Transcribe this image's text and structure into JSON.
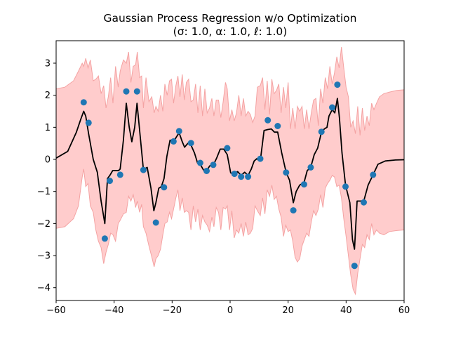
{
  "chart_data": {
    "type": "scatter",
    "title_line1": "Gaussian Process Regression w/o Optimization",
    "title_line2": "(σ: 1.0, α: 1.0, ℓ: 1.0)",
    "xlabel": "",
    "ylabel": "",
    "xlim": [
      -60,
      60
    ],
    "ylim": [
      -4.4,
      3.7
    ],
    "xticks": [
      -60,
      -40,
      -20,
      0,
      20,
      40,
      60
    ],
    "xtick_labels": [
      "−60",
      "−40",
      "−20",
      "0",
      "20",
      "40",
      "60"
    ],
    "yticks": [
      -4,
      -3,
      -2,
      -1,
      0,
      1,
      2,
      3
    ],
    "ytick_labels": [
      "−4",
      "−3",
      "−2",
      "−1",
      "0",
      "1",
      "2",
      "3"
    ],
    "grid": false,
    "colors": {
      "points": "#1f77b4",
      "mean": "#000000",
      "band": "#ffcccc",
      "band_edge": "#f4a3a3"
    },
    "observations": {
      "x": [
        -50.5,
        -48.8,
        -43.2,
        -41.5,
        -37.9,
        -35.8,
        -32.1,
        -29.9,
        -25.6,
        -22.8,
        -19.5,
        -17.6,
        -13.5,
        -10.3,
        -8.1,
        -5.8,
        -1.0,
        1.5,
        3.8,
        6.2,
        10.4,
        13.0,
        16.4,
        19.3,
        21.8,
        25.5,
        27.8,
        31.5,
        35.2,
        37.0,
        39.8,
        42.9,
        46.1,
        49.3
      ],
      "y": [
        1.78,
        1.14,
        -2.47,
        -0.67,
        -0.48,
        2.12,
        2.12,
        -0.33,
        -1.97,
        -0.87,
        0.56,
        0.88,
        0.51,
        -0.11,
        -0.36,
        -0.17,
        0.35,
        -0.45,
        -0.54,
        -0.54,
        0.02,
        1.22,
        1.04,
        -0.41,
        -1.59,
        -0.78,
        -0.25,
        0.86,
        1.62,
        2.33,
        -0.85,
        -3.32,
        -1.34,
        -0.48
      ]
    },
    "mean_curve": {
      "x": [
        -60,
        -56,
        -53,
        -51.5,
        -50.5,
        -49.8,
        -48.8,
        -47.2,
        -45.8,
        -44.5,
        -43.2,
        -42.3,
        -41.5,
        -40.5,
        -39.5,
        -38.5,
        -37.9,
        -36.8,
        -35.8,
        -34.8,
        -33.9,
        -32.9,
        -32.1,
        -31.3,
        -29.9,
        -28.6,
        -27.3,
        -26.3,
        -25.6,
        -24.6,
        -23.7,
        -22.8,
        -21.8,
        -20.7,
        -19.5,
        -18.5,
        -17.6,
        -16.5,
        -15.7,
        -14.6,
        -13.5,
        -12.3,
        -11.2,
        -10.3,
        -9.2,
        -8.1,
        -7.0,
        -5.8,
        -4.6,
        -3.4,
        -2.2,
        -1.0,
        0.2,
        1.5,
        2.6,
        3.8,
        5.0,
        6.2,
        7.3,
        8.3,
        9.2,
        10.4,
        11.7,
        13.0,
        14.2,
        15.3,
        16.4,
        17.8,
        19.3,
        20.5,
        21.8,
        22.8,
        24.0,
        25.5,
        26.6,
        27.8,
        29.0,
        30.2,
        31.5,
        32.5,
        33.4,
        34.1,
        35.2,
        36.1,
        37.0,
        37.7,
        38.6,
        39.8,
        41.3,
        42.2,
        42.9,
        43.8,
        45.0,
        46.1,
        47.6,
        49.3,
        51.0,
        53.5,
        57.0,
        60.0
      ],
      "y": [
        0.04,
        0.25,
        0.85,
        1.25,
        1.5,
        1.35,
        0.8,
        0.0,
        -0.4,
        -1.3,
        -2.0,
        -0.6,
        -0.5,
        -0.35,
        -0.35,
        -0.35,
        -0.3,
        0.6,
        1.75,
        1.0,
        0.55,
        1.0,
        1.75,
        1.0,
        -0.32,
        -0.25,
        -0.9,
        -1.6,
        -1.35,
        -0.9,
        -0.85,
        -0.6,
        0.1,
        0.6,
        0.55,
        0.7,
        0.83,
        0.55,
        0.38,
        0.5,
        0.45,
        0.2,
        -0.12,
        -0.15,
        -0.33,
        -0.35,
        -0.2,
        -0.18,
        0.05,
        0.32,
        0.32,
        0.15,
        -0.42,
        -0.45,
        -0.38,
        -0.5,
        -0.4,
        -0.5,
        -0.3,
        -0.05,
        0.02,
        -0.05,
        0.9,
        0.93,
        0.95,
        0.85,
        0.85,
        0.2,
        -0.4,
        -0.65,
        -1.35,
        -1.0,
        -0.8,
        -0.72,
        -0.35,
        -0.25,
        0.15,
        0.35,
        0.85,
        0.95,
        1.0,
        1.35,
        1.55,
        1.45,
        1.9,
        1.3,
        0.2,
        -0.8,
        -1.35,
        -2.5,
        -2.8,
        -1.3,
        -1.3,
        -1.3,
        -0.8,
        -0.48,
        -0.15,
        -0.05,
        -0.02,
        -0.01
      ]
    },
    "band_upper": {
      "x": [
        -60,
        -57,
        -54,
        -52.3,
        -51.0,
        -50.5,
        -49.8,
        -49.0,
        -48.2,
        -47.2,
        -46.3,
        -45.4,
        -44.5,
        -43.6,
        -42.8,
        -42.0,
        -41.2,
        -40.4,
        -39.5,
        -38.6,
        -37.9,
        -36.8,
        -35.8,
        -35.0,
        -34.2,
        -33.4,
        -32.6,
        -32.0,
        -31.2,
        -30.5,
        -29.9,
        -29.0,
        -28.0,
        -27.0,
        -26.2,
        -25.6,
        -24.8,
        -24.0,
        -23.2,
        -22.5,
        -21.7,
        -20.9,
        -20.2,
        -19.5,
        -18.7,
        -18.0,
        -17.3,
        -16.5,
        -15.8,
        -15.1,
        -14.3,
        -13.5,
        -12.7,
        -11.9,
        -11.1,
        -10.3,
        -9.5,
        -8.7,
        -7.9,
        -7.1,
        -6.3,
        -5.6,
        -4.8,
        -4.0,
        -3.2,
        -2.4,
        -1.6,
        -1.0,
        -0.2,
        0.6,
        1.4,
        2.2,
        3.0,
        3.8,
        4.6,
        5.4,
        6.2,
        7.0,
        7.8,
        8.6,
        9.4,
        10.4,
        11.2,
        12.0,
        12.8,
        13.6,
        14.4,
        15.2,
        16.0,
        16.8,
        17.6,
        18.4,
        19.2,
        20.0,
        20.8,
        21.6,
        22.4,
        23.2,
        24.0,
        24.8,
        25.6,
        26.4,
        27.2,
        28.0,
        28.8,
        29.6,
        30.4,
        31.2,
        32.0,
        32.8,
        33.6,
        34.4,
        35.2,
        36.0,
        36.8,
        37.6,
        38.4,
        39.2,
        40.0,
        40.8,
        41.6,
        42.4,
        43.2,
        44.0,
        44.8,
        45.6,
        46.4,
        47.2,
        48.0,
        48.8,
        49.6,
        50.5,
        51.5,
        53.0,
        55.0,
        57.5,
        60.0
      ],
      "y": [
        2.2,
        2.25,
        2.45,
        2.75,
        3.0,
        2.9,
        3.15,
        2.85,
        3.1,
        2.45,
        2.5,
        2.6,
        2.05,
        2.3,
        1.6,
        1.95,
        2.55,
        1.75,
        2.9,
        2.25,
        2.75,
        3.1,
        3.0,
        3.35,
        2.4,
        2.9,
        2.95,
        3.35,
        2.55,
        2.6,
        1.6,
        2.55,
        1.8,
        1.95,
        1.45,
        1.65,
        1.5,
        2.0,
        1.5,
        2.35,
        2.0,
        2.45,
        2.5,
        1.75,
        2.3,
        2.6,
        1.95,
        2.65,
        1.85,
        2.4,
        2.5,
        1.8,
        1.85,
        2.35,
        1.45,
        2.3,
        1.35,
        2.2,
        1.45,
        1.6,
        1.9,
        1.35,
        1.85,
        1.85,
        1.3,
        1.8,
        2.4,
        2.2,
        1.2,
        1.55,
        1.2,
        1.45,
        2.0,
        1.35,
        1.9,
        1.35,
        1.5,
        1.4,
        1.15,
        1.35,
        2.25,
        2.3,
        2.55,
        1.55,
        2.45,
        1.4,
        2.5,
        2.05,
        2.15,
        2.35,
        1.45,
        2.25,
        1.6,
        2.4,
        0.95,
        1.6,
        0.95,
        1.65,
        1.5,
        1.65,
        0.95,
        1.55,
        0.95,
        1.45,
        1.85,
        1.9,
        1.05,
        2.2,
        1.75,
        2.55,
        2.2,
        2.9,
        2.35,
        2.7,
        3.2,
        2.85,
        3.5,
        2.85,
        2.25,
        1.95,
        1.0,
        1.2,
        0.8,
        1.65,
        0.75,
        1.6,
        0.9,
        1.35,
        1.05,
        1.75,
        1.55,
        1.75,
        1.95,
        2.05,
        2.1,
        2.15,
        2.17
      ]
    },
    "band_lower": {
      "x": [
        -60,
        -57,
        -54,
        -52.3,
        -51.0,
        -50.5,
        -49.8,
        -49.0,
        -48.2,
        -47.2,
        -46.3,
        -45.4,
        -44.5,
        -43.6,
        -42.8,
        -42.0,
        -41.2,
        -40.4,
        -39.5,
        -38.6,
        -37.9,
        -36.8,
        -35.8,
        -35.0,
        -34.2,
        -33.4,
        -32.6,
        -32.0,
        -31.2,
        -30.5,
        -29.9,
        -29.0,
        -28.0,
        -27.0,
        -26.2,
        -25.6,
        -24.8,
        -24.0,
        -23.2,
        -22.5,
        -21.7,
        -20.9,
        -20.2,
        -19.5,
        -18.7,
        -18.0,
        -17.3,
        -16.5,
        -15.8,
        -15.1,
        -14.3,
        -13.5,
        -12.7,
        -11.9,
        -11.1,
        -10.3,
        -9.5,
        -8.7,
        -7.9,
        -7.1,
        -6.3,
        -5.6,
        -4.8,
        -4.0,
        -3.2,
        -2.4,
        -1.6,
        -1.0,
        -0.2,
        0.6,
        1.4,
        2.2,
        3.0,
        3.8,
        4.6,
        5.4,
        6.2,
        7.0,
        7.8,
        8.6,
        9.4,
        10.4,
        11.2,
        12.0,
        12.8,
        13.6,
        14.4,
        15.2,
        16.0,
        16.8,
        17.6,
        18.4,
        19.2,
        20.0,
        20.8,
        21.6,
        22.4,
        23.2,
        24.0,
        24.8,
        25.6,
        26.4,
        27.2,
        28.0,
        28.8,
        29.6,
        30.4,
        31.2,
        32.0,
        32.8,
        33.6,
        34.4,
        35.2,
        36.0,
        36.8,
        37.6,
        38.4,
        39.2,
        40.0,
        40.8,
        41.6,
        42.4,
        43.2,
        44.0,
        44.8,
        45.6,
        46.4,
        47.2,
        48.0,
        48.8,
        49.6,
        50.5,
        51.5,
        53.0,
        55.0,
        57.5,
        60.0
      ],
      "y": [
        -2.15,
        -2.1,
        -1.85,
        -1.45,
        -0.55,
        -0.3,
        -0.85,
        -0.75,
        -1.45,
        -1.65,
        -2.2,
        -2.55,
        -2.75,
        -3.25,
        -2.9,
        -2.65,
        -2.3,
        -2.35,
        -2.55,
        -2.0,
        -1.9,
        -1.7,
        -1.65,
        -1.15,
        -1.3,
        -1.1,
        -1.5,
        -1.3,
        -1.65,
        -1.4,
        -2.1,
        -2.3,
        -2.7,
        -3.05,
        -3.35,
        -3.1,
        -3.0,
        -2.8,
        -2.35,
        -2.0,
        -1.95,
        -1.65,
        -1.85,
        -1.55,
        -1.2,
        -0.95,
        -1.6,
        -1.2,
        -1.65,
        -1.6,
        -1.65,
        -2.2,
        -1.45,
        -1.95,
        -1.55,
        -2.2,
        -1.75,
        -1.95,
        -2.05,
        -2.25,
        -1.8,
        -2.1,
        -1.5,
        -1.65,
        -2.2,
        -1.5,
        -1.55,
        -1.45,
        -2.2,
        -1.6,
        -2.45,
        -2.2,
        -2.3,
        -2.0,
        -2.4,
        -1.95,
        -2.35,
        -2.3,
        -2.15,
        -1.45,
        -1.6,
        -1.75,
        -1.2,
        -1.7,
        -0.95,
        -1.15,
        -0.8,
        -1.25,
        -1.15,
        -1.55,
        -1.8,
        -2.4,
        -2.05,
        -2.25,
        -2.2,
        -2.55,
        -3.05,
        -3.2,
        -3.1,
        -2.7,
        -2.5,
        -2.3,
        -2.4,
        -1.95,
        -1.6,
        -1.75,
        -1.55,
        -1.1,
        -1.5,
        -0.9,
        -0.75,
        -0.65,
        -0.5,
        -0.55,
        -0.85,
        -0.8,
        -1.2,
        -1.85,
        -2.4,
        -3.0,
        -3.6,
        -4.05,
        -4.2,
        -3.55,
        -3.1,
        -2.65,
        -2.75,
        -2.35,
        -2.5,
        -2.0,
        -2.35,
        -2.2,
        -2.3,
        -2.35,
        -2.25,
        -2.22,
        -2.2
      ]
    }
  }
}
